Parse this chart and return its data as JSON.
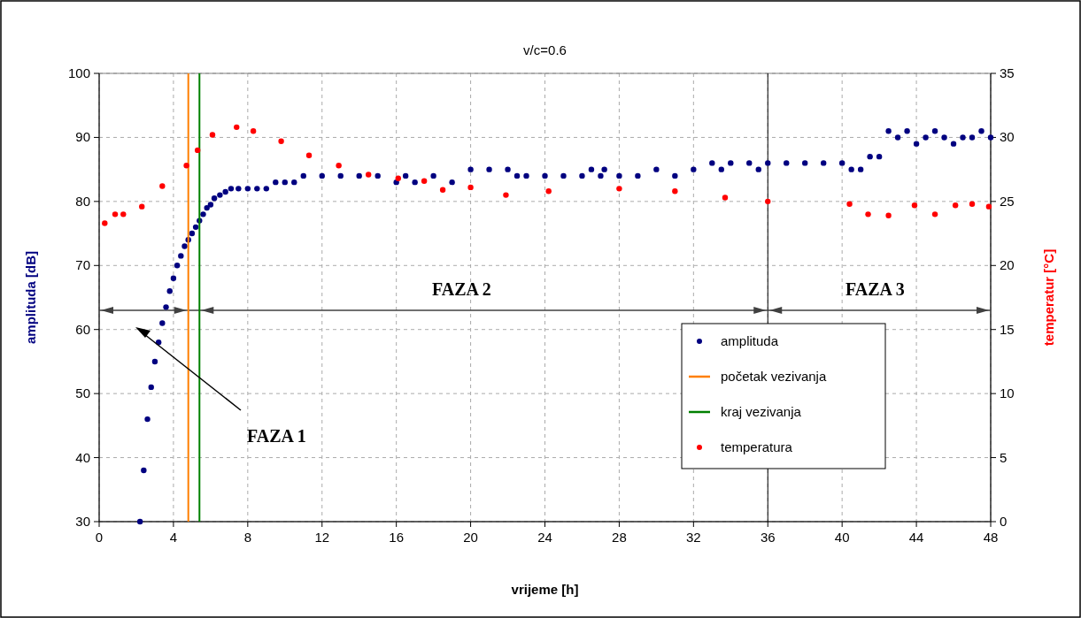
{
  "chart_data": {
    "type": "scatter",
    "title": "v/c=0.6",
    "xlabel": "vrijeme [h]",
    "ylabel": "amplituda [dB]",
    "y2label": "temperatur [°C]",
    "xlim": [
      0,
      48
    ],
    "xticks": [
      0,
      4,
      8,
      12,
      16,
      20,
      24,
      28,
      32,
      36,
      40,
      44,
      48
    ],
    "ylim": [
      30,
      100
    ],
    "yticks": [
      30,
      40,
      50,
      60,
      70,
      80,
      90,
      100
    ],
    "y2lim": [
      0,
      35
    ],
    "y2ticks": [
      0,
      5,
      10,
      15,
      20,
      25,
      30,
      35
    ],
    "grid": true,
    "legend": "right",
    "marker": "circle",
    "series": [
      {
        "name": "amplituda",
        "color": "#000080",
        "x": [
          2.2,
          2.4,
          2.6,
          2.8,
          3.0,
          3.2,
          3.4,
          3.6,
          3.8,
          4.0,
          4.2,
          4.4,
          4.6,
          4.8,
          5.0,
          5.2,
          5.4,
          5.6,
          5.8,
          6.0,
          6.2,
          6.5,
          6.8,
          7.1,
          7.5,
          8,
          8.5,
          9,
          9.5,
          10,
          10.5,
          11,
          12,
          13,
          14,
          15,
          16,
          16.5,
          17,
          18,
          19,
          20,
          21,
          22,
          22.5,
          23,
          24,
          25,
          26,
          26.5,
          27,
          27.2,
          28,
          29,
          30,
          31,
          32,
          33,
          33.5,
          34,
          35,
          35.5,
          36,
          37,
          38,
          39,
          40,
          40.5,
          41,
          41.5,
          42,
          42.5,
          43,
          43.5,
          44,
          44.5,
          45,
          45.5,
          46,
          46.5,
          47,
          47.5,
          48
        ],
        "values": [
          30,
          38,
          46,
          51,
          55,
          58,
          61,
          63.5,
          66,
          68,
          70,
          71.5,
          73,
          74,
          75,
          76,
          77,
          78,
          79,
          79.5,
          80.5,
          81,
          81.5,
          82,
          82,
          82,
          82,
          82,
          83,
          83,
          83,
          84,
          84,
          84,
          84,
          84,
          83,
          84,
          83,
          84,
          83,
          85,
          85,
          85,
          84,
          84,
          84,
          84,
          84,
          85,
          84,
          85,
          84,
          84,
          85,
          84,
          85,
          86,
          85,
          86,
          86,
          85,
          86,
          86,
          86,
          86,
          86,
          85,
          85,
          87,
          87,
          91,
          90,
          91,
          89,
          90,
          91,
          90,
          89,
          90,
          90,
          91,
          90
        ]
      },
      {
        "name": "početak vezivanja",
        "type": "line",
        "marker": "none",
        "color": "#ff7f00",
        "x": [
          4.8,
          4.8
        ],
        "values": [
          30,
          100
        ]
      },
      {
        "name": "kraj vezivanja",
        "type": "line",
        "marker": "none",
        "color": "#008000",
        "x": [
          5.4,
          5.4
        ],
        "values": [
          30,
          100
        ]
      },
      {
        "name": "temperatura",
        "color": "#ff0000",
        "axis": "y2",
        "x": [
          0.3,
          0.86,
          1.3,
          2.3,
          3.4,
          4.7,
          5.3,
          6.1,
          7.4,
          8.3,
          9.8,
          11.3,
          12.9,
          14.5,
          16.1,
          17.5,
          18.5,
          20,
          21.9,
          24.2,
          28,
          31,
          33.7,
          36,
          40.4,
          41.4,
          42.5,
          43.9,
          45,
          46.1,
          47,
          47.9
        ],
        "values": [
          23.3,
          24.0,
          24.0,
          24.6,
          26.2,
          27.8,
          29.0,
          30.2,
          30.8,
          30.5,
          29.7,
          28.6,
          27.8,
          27.1,
          26.8,
          26.6,
          25.9,
          26.1,
          25.5,
          25.8,
          26.0,
          25.8,
          25.3,
          25.0,
          24.8,
          24.0,
          23.9,
          24.7,
          24.0,
          24.7,
          24.8,
          24.6
        ]
      }
    ],
    "ref_lines": [
      {
        "axis": "x",
        "value": 36,
        "color": "#000000"
      },
      {
        "axis": "y",
        "value": 63,
        "color": "#404040"
      }
    ],
    "annotations": [
      "FAZA 1",
      "FAZA 2",
      "FAZA 3"
    ]
  }
}
